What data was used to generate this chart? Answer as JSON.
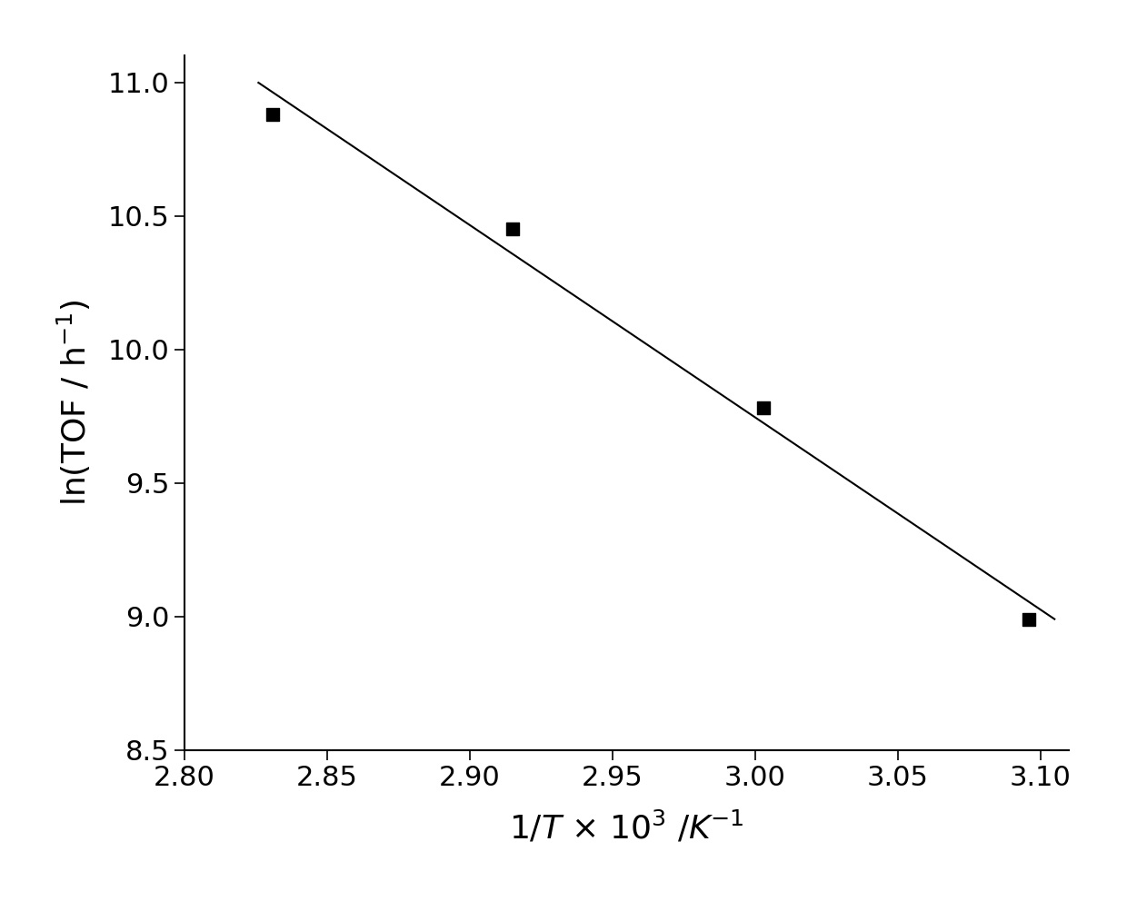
{
  "x_data": [
    2.831,
    2.915,
    3.003,
    3.096
  ],
  "y_data": [
    10.88,
    10.45,
    9.78,
    8.99
  ],
  "line_x_start": 2.826,
  "line_x_end": 3.105,
  "line_color": "#000000",
  "marker_color": "#000000",
  "marker_size": 100,
  "xlabel": "$\\mathit{1/T}$ × 10$^{3}$ /$\\mathit{K}$$^{-1}$",
  "ylabel": "ln(TOF / h$^{-1}$)",
  "xlim": [
    2.8,
    3.11
  ],
  "ylim": [
    8.5,
    11.1
  ],
  "xticks": [
    2.8,
    2.85,
    2.9,
    2.95,
    3.0,
    3.05,
    3.1
  ],
  "yticks": [
    8.5,
    9.0,
    9.5,
    10.0,
    10.5,
    11.0
  ],
  "background_color": "#ffffff",
  "linewidth": 1.5,
  "tick_fontsize": 22,
  "label_fontsize": 26,
  "font_family": "DejaVu Sans"
}
